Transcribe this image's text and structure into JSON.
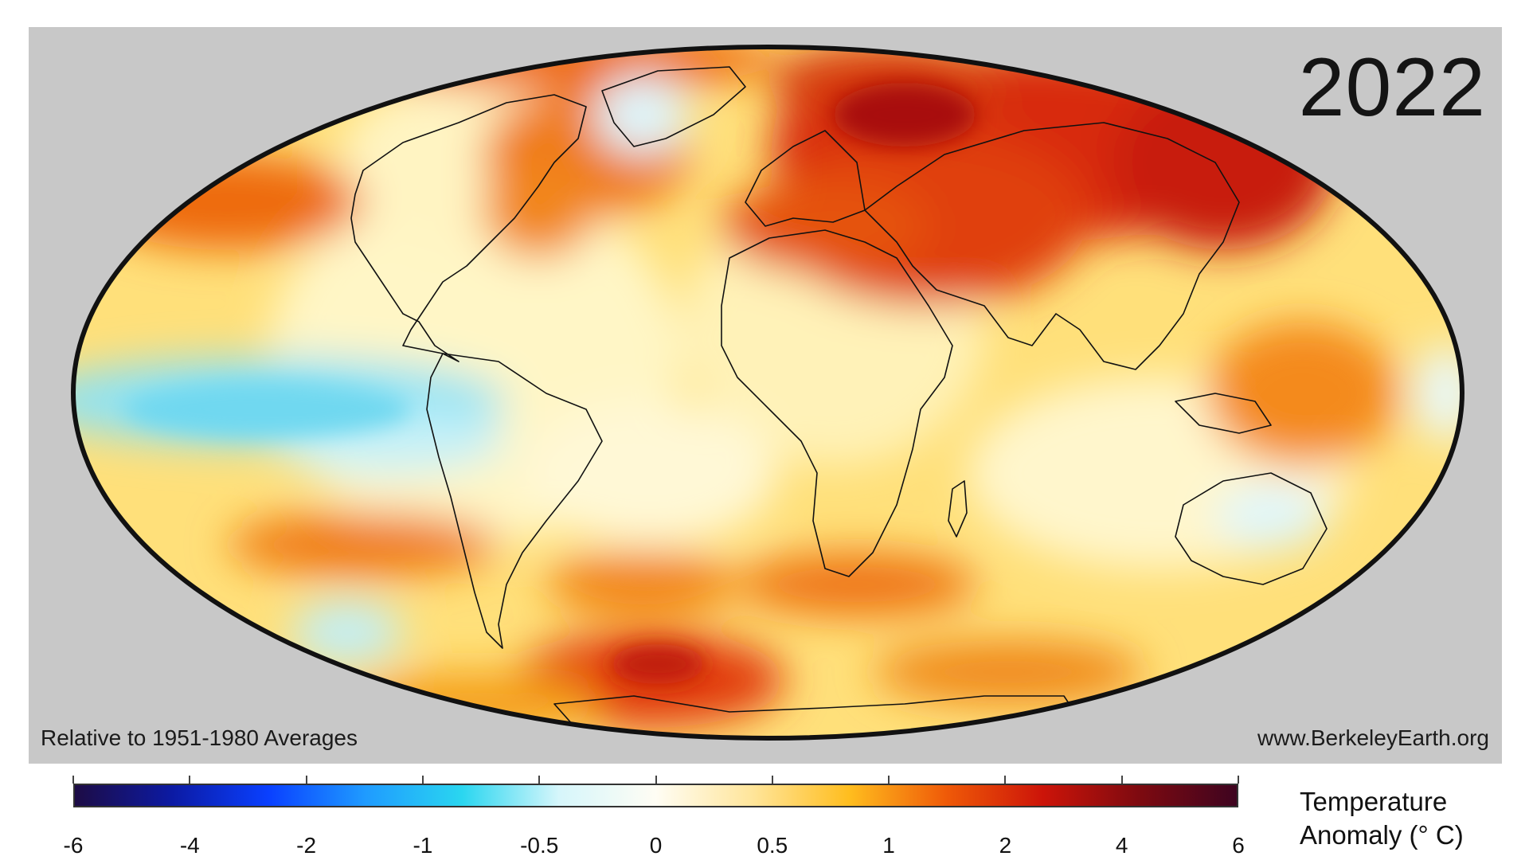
{
  "map": {
    "year": "2022",
    "baseline_note": "Relative to 1951-1980 Averages",
    "source": "www.BerkeleyEarth.org",
    "projection": "mollweide",
    "background_color": "#c8c8c8"
  },
  "colorbar": {
    "title_line1": "Temperature",
    "title_line2": "Anomaly (° C)",
    "tick_labels": [
      "-6",
      "-4",
      "-2",
      "-1",
      "-0.5",
      "0",
      "0.5",
      "1",
      "2",
      "4",
      "6"
    ],
    "colors": [
      "#1d0c45",
      "#0c1aa3",
      "#0a40ff",
      "#1f9bff",
      "#2ad6f0",
      "#d6f6fb",
      "#fffdf4",
      "#ffe59a",
      "#ffbd1e",
      "#ef5a08",
      "#cc1409",
      "#7d0a10",
      "#3e0420"
    ]
  }
}
